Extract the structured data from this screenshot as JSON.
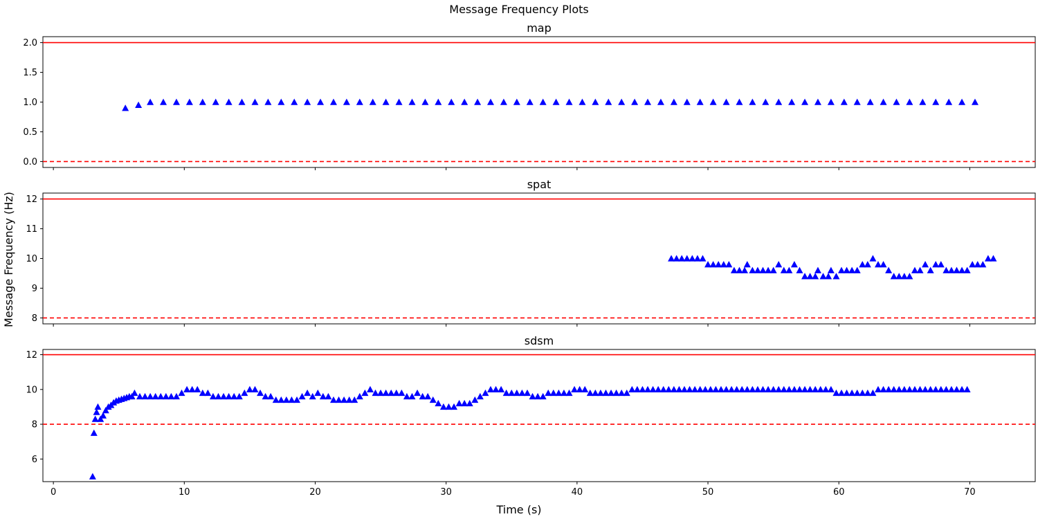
{
  "figure": {
    "suptitle": "Message Frequency Plots",
    "xlabel": "Time (s)",
    "ylabel": "Message Frequency (Hz)",
    "xlim": [
      -0.8,
      75
    ],
    "xticks": [
      0,
      10,
      20,
      30,
      40,
      50,
      60,
      70
    ],
    "colors": {
      "marker": "#0000ff",
      "threshold": "#ff0000",
      "axis": "#000000"
    }
  },
  "chart_data": [
    {
      "type": "scatter",
      "title": "map",
      "marker": "triangle",
      "ylim": [
        -0.1,
        2.1
      ],
      "yticks": [
        0.0,
        0.5,
        1.0,
        1.5,
        2.0
      ],
      "ytick_labels": [
        "0.0",
        "0.5",
        "1.0",
        "1.5",
        "2.0"
      ],
      "max_line": 2.0,
      "min_line": 0.0,
      "points": [
        [
          5.5,
          0.9
        ],
        [
          6.5,
          0.95
        ],
        [
          7.4,
          1.0
        ],
        [
          8.4,
          1.0
        ],
        [
          9.4,
          1.0
        ],
        [
          10.4,
          1.0
        ],
        [
          11.4,
          1.0
        ],
        [
          12.4,
          1.0
        ],
        [
          13.4,
          1.0
        ],
        [
          14.4,
          1.0
        ],
        [
          15.4,
          1.0
        ],
        [
          16.4,
          1.0
        ],
        [
          17.4,
          1.0
        ],
        [
          18.4,
          1.0
        ],
        [
          19.4,
          1.0
        ],
        [
          20.4,
          1.0
        ],
        [
          21.4,
          1.0
        ],
        [
          22.4,
          1.0
        ],
        [
          23.4,
          1.0
        ],
        [
          24.4,
          1.0
        ],
        [
          25.4,
          1.0
        ],
        [
          26.4,
          1.0
        ],
        [
          27.4,
          1.0
        ],
        [
          28.4,
          1.0
        ],
        [
          29.4,
          1.0
        ],
        [
          30.4,
          1.0
        ],
        [
          31.4,
          1.0
        ],
        [
          32.4,
          1.0
        ],
        [
          33.4,
          1.0
        ],
        [
          34.4,
          1.0
        ],
        [
          35.4,
          1.0
        ],
        [
          36.4,
          1.0
        ],
        [
          37.4,
          1.0
        ],
        [
          38.4,
          1.0
        ],
        [
          39.4,
          1.0
        ],
        [
          40.4,
          1.0
        ],
        [
          41.4,
          1.0
        ],
        [
          42.4,
          1.0
        ],
        [
          43.4,
          1.0
        ],
        [
          44.4,
          1.0
        ],
        [
          45.4,
          1.0
        ],
        [
          46.4,
          1.0
        ],
        [
          47.4,
          1.0
        ],
        [
          48.4,
          1.0
        ],
        [
          49.4,
          1.0
        ],
        [
          50.4,
          1.0
        ],
        [
          51.4,
          1.0
        ],
        [
          52.4,
          1.0
        ],
        [
          53.4,
          1.0
        ],
        [
          54.4,
          1.0
        ],
        [
          55.4,
          1.0
        ],
        [
          56.4,
          1.0
        ],
        [
          57.4,
          1.0
        ],
        [
          58.4,
          1.0
        ],
        [
          59.4,
          1.0
        ],
        [
          60.4,
          1.0
        ],
        [
          61.4,
          1.0
        ],
        [
          62.4,
          1.0
        ],
        [
          63.4,
          1.0
        ],
        [
          64.4,
          1.0
        ],
        [
          65.4,
          1.0
        ],
        [
          66.4,
          1.0
        ],
        [
          67.4,
          1.0
        ],
        [
          68.4,
          1.0
        ],
        [
          69.4,
          1.0
        ],
        [
          70.4,
          1.0
        ]
      ]
    },
    {
      "type": "scatter",
      "title": "spat",
      "marker": "triangle",
      "ylim": [
        7.8,
        12.2
      ],
      "yticks": [
        8,
        9,
        10,
        11,
        12
      ],
      "ytick_labels": [
        "8",
        "9",
        "10",
        "11",
        "12"
      ],
      "max_line": 12,
      "min_line": 8,
      "points": [
        [
          47.2,
          10.0
        ],
        [
          47.6,
          10.0
        ],
        [
          48.0,
          10.0
        ],
        [
          48.4,
          10.0
        ],
        [
          48.8,
          10.0
        ],
        [
          49.2,
          10.0
        ],
        [
          49.6,
          10.0
        ],
        [
          50.0,
          9.8
        ],
        [
          50.4,
          9.8
        ],
        [
          50.8,
          9.8
        ],
        [
          51.2,
          9.8
        ],
        [
          51.6,
          9.8
        ],
        [
          52.0,
          9.6
        ],
        [
          52.4,
          9.6
        ],
        [
          52.8,
          9.6
        ],
        [
          53.0,
          9.8
        ],
        [
          53.4,
          9.6
        ],
        [
          53.8,
          9.6
        ],
        [
          54.2,
          9.6
        ],
        [
          54.6,
          9.6
        ],
        [
          55.0,
          9.6
        ],
        [
          55.4,
          9.8
        ],
        [
          55.8,
          9.6
        ],
        [
          56.2,
          9.6
        ],
        [
          56.6,
          9.8
        ],
        [
          57.0,
          9.6
        ],
        [
          57.4,
          9.4
        ],
        [
          57.8,
          9.4
        ],
        [
          58.2,
          9.4
        ],
        [
          58.4,
          9.6
        ],
        [
          58.8,
          9.4
        ],
        [
          59.2,
          9.4
        ],
        [
          59.4,
          9.6
        ],
        [
          59.8,
          9.4
        ],
        [
          60.2,
          9.6
        ],
        [
          60.6,
          9.6
        ],
        [
          61.0,
          9.6
        ],
        [
          61.4,
          9.6
        ],
        [
          61.8,
          9.8
        ],
        [
          62.2,
          9.8
        ],
        [
          62.6,
          10.0
        ],
        [
          63.0,
          9.8
        ],
        [
          63.4,
          9.8
        ],
        [
          63.8,
          9.6
        ],
        [
          64.2,
          9.4
        ],
        [
          64.6,
          9.4
        ],
        [
          65.0,
          9.4
        ],
        [
          65.4,
          9.4
        ],
        [
          65.8,
          9.6
        ],
        [
          66.2,
          9.6
        ],
        [
          66.6,
          9.8
        ],
        [
          67.0,
          9.6
        ],
        [
          67.4,
          9.8
        ],
        [
          67.8,
          9.8
        ],
        [
          68.2,
          9.6
        ],
        [
          68.6,
          9.6
        ],
        [
          69.0,
          9.6
        ],
        [
          69.4,
          9.6
        ],
        [
          69.8,
          9.6
        ],
        [
          70.2,
          9.8
        ],
        [
          70.6,
          9.8
        ],
        [
          71.0,
          9.8
        ],
        [
          71.4,
          10.0
        ],
        [
          71.8,
          10.0
        ]
      ]
    },
    {
      "type": "scatter",
      "title": "sdsm",
      "marker": "triangle",
      "ylim": [
        4.7,
        12.3
      ],
      "yticks": [
        6,
        8,
        10,
        12
      ],
      "ytick_labels": [
        "6",
        "8",
        "10",
        "12"
      ],
      "max_line": 12,
      "min_line": 8,
      "points": [
        [
          3.0,
          5.0
        ],
        [
          3.1,
          7.5
        ],
        [
          3.2,
          8.3
        ],
        [
          3.3,
          8.7
        ],
        [
          3.4,
          9.0
        ],
        [
          3.6,
          8.3
        ],
        [
          3.8,
          8.5
        ],
        [
          4.0,
          8.8
        ],
        [
          4.2,
          9.0
        ],
        [
          4.4,
          9.1
        ],
        [
          4.6,
          9.25
        ],
        [
          4.8,
          9.35
        ],
        [
          5.0,
          9.4
        ],
        [
          5.2,
          9.45
        ],
        [
          5.4,
          9.5
        ],
        [
          5.6,
          9.55
        ],
        [
          5.8,
          9.6
        ],
        [
          6.0,
          9.6
        ],
        [
          6.2,
          9.8
        ],
        [
          6.6,
          9.6
        ],
        [
          7.0,
          9.6
        ],
        [
          7.4,
          9.6
        ],
        [
          7.8,
          9.6
        ],
        [
          8.2,
          9.6
        ],
        [
          8.6,
          9.6
        ],
        [
          9.0,
          9.6
        ],
        [
          9.4,
          9.6
        ],
        [
          9.8,
          9.8
        ],
        [
          10.2,
          10.0
        ],
        [
          10.6,
          10.0
        ],
        [
          11.0,
          10.0
        ],
        [
          11.4,
          9.8
        ],
        [
          11.8,
          9.8
        ],
        [
          12.2,
          9.6
        ],
        [
          12.6,
          9.6
        ],
        [
          13.0,
          9.6
        ],
        [
          13.4,
          9.6
        ],
        [
          13.8,
          9.6
        ],
        [
          14.2,
          9.6
        ],
        [
          14.6,
          9.8
        ],
        [
          15.0,
          10.0
        ],
        [
          15.4,
          10.0
        ],
        [
          15.8,
          9.8
        ],
        [
          16.2,
          9.6
        ],
        [
          16.6,
          9.6
        ],
        [
          17.0,
          9.4
        ],
        [
          17.4,
          9.4
        ],
        [
          17.8,
          9.4
        ],
        [
          18.2,
          9.4
        ],
        [
          18.6,
          9.4
        ],
        [
          19.0,
          9.6
        ],
        [
          19.4,
          9.8
        ],
        [
          19.8,
          9.6
        ],
        [
          20.2,
          9.8
        ],
        [
          20.6,
          9.6
        ],
        [
          21.0,
          9.6
        ],
        [
          21.4,
          9.4
        ],
        [
          21.8,
          9.4
        ],
        [
          22.2,
          9.4
        ],
        [
          22.6,
          9.4
        ],
        [
          23.0,
          9.4
        ],
        [
          23.4,
          9.6
        ],
        [
          23.8,
          9.8
        ],
        [
          24.2,
          10.0
        ],
        [
          24.6,
          9.8
        ],
        [
          25.0,
          9.8
        ],
        [
          25.4,
          9.8
        ],
        [
          25.8,
          9.8
        ],
        [
          26.2,
          9.8
        ],
        [
          26.6,
          9.8
        ],
        [
          27.0,
          9.6
        ],
        [
          27.4,
          9.6
        ],
        [
          27.8,
          9.8
        ],
        [
          28.2,
          9.6
        ],
        [
          28.6,
          9.6
        ],
        [
          29.0,
          9.4
        ],
        [
          29.4,
          9.2
        ],
        [
          29.8,
          9.0
        ],
        [
          30.2,
          9.0
        ],
        [
          30.6,
          9.0
        ],
        [
          31.0,
          9.2
        ],
        [
          31.4,
          9.2
        ],
        [
          31.8,
          9.2
        ],
        [
          32.2,
          9.4
        ],
        [
          32.6,
          9.6
        ],
        [
          33.0,
          9.8
        ],
        [
          33.4,
          10.0
        ],
        [
          33.8,
          10.0
        ],
        [
          34.2,
          10.0
        ],
        [
          34.6,
          9.8
        ],
        [
          35.0,
          9.8
        ],
        [
          35.4,
          9.8
        ],
        [
          35.8,
          9.8
        ],
        [
          36.2,
          9.8
        ],
        [
          36.6,
          9.6
        ],
        [
          37.0,
          9.6
        ],
        [
          37.4,
          9.6
        ],
        [
          37.8,
          9.8
        ],
        [
          38.2,
          9.8
        ],
        [
          38.6,
          9.8
        ],
        [
          39.0,
          9.8
        ],
        [
          39.4,
          9.8
        ],
        [
          39.8,
          10.0
        ],
        [
          40.2,
          10.0
        ],
        [
          40.6,
          10.0
        ],
        [
          41.0,
          9.8
        ],
        [
          41.4,
          9.8
        ],
        [
          41.8,
          9.8
        ],
        [
          42.2,
          9.8
        ],
        [
          42.6,
          9.8
        ],
        [
          43.0,
          9.8
        ],
        [
          43.4,
          9.8
        ],
        [
          43.8,
          9.8
        ],
        [
          44.2,
          10.0
        ],
        [
          44.6,
          10.0
        ],
        [
          45.0,
          10.0
        ],
        [
          45.4,
          10.0
        ],
        [
          45.8,
          10.0
        ],
        [
          46.2,
          10.0
        ],
        [
          46.6,
          10.0
        ],
        [
          47.0,
          10.0
        ],
        [
          47.4,
          10.0
        ],
        [
          47.8,
          10.0
        ],
        [
          48.2,
          10.0
        ],
        [
          48.6,
          10.0
        ],
        [
          49.0,
          10.0
        ],
        [
          49.4,
          10.0
        ],
        [
          49.8,
          10.0
        ],
        [
          50.2,
          10.0
        ],
        [
          50.6,
          10.0
        ],
        [
          51.0,
          10.0
        ],
        [
          51.4,
          10.0
        ],
        [
          51.8,
          10.0
        ],
        [
          52.2,
          10.0
        ],
        [
          52.6,
          10.0
        ],
        [
          53.0,
          10.0
        ],
        [
          53.4,
          10.0
        ],
        [
          53.8,
          10.0
        ],
        [
          54.2,
          10.0
        ],
        [
          54.6,
          10.0
        ],
        [
          55.0,
          10.0
        ],
        [
          55.4,
          10.0
        ],
        [
          55.8,
          10.0
        ],
        [
          56.2,
          10.0
        ],
        [
          56.6,
          10.0
        ],
        [
          57.0,
          10.0
        ],
        [
          57.4,
          10.0
        ],
        [
          57.8,
          10.0
        ],
        [
          58.2,
          10.0
        ],
        [
          58.6,
          10.0
        ],
        [
          59.0,
          10.0
        ],
        [
          59.4,
          10.0
        ],
        [
          59.8,
          9.8
        ],
        [
          60.2,
          9.8
        ],
        [
          60.6,
          9.8
        ],
        [
          61.0,
          9.8
        ],
        [
          61.4,
          9.8
        ],
        [
          61.8,
          9.8
        ],
        [
          62.2,
          9.8
        ],
        [
          62.6,
          9.8
        ],
        [
          63.0,
          10.0
        ],
        [
          63.4,
          10.0
        ],
        [
          63.8,
          10.0
        ],
        [
          64.2,
          10.0
        ],
        [
          64.6,
          10.0
        ],
        [
          65.0,
          10.0
        ],
        [
          65.4,
          10.0
        ],
        [
          65.8,
          10.0
        ],
        [
          66.2,
          10.0
        ],
        [
          66.6,
          10.0
        ],
        [
          67.0,
          10.0
        ],
        [
          67.4,
          10.0
        ],
        [
          67.8,
          10.0
        ],
        [
          68.2,
          10.0
        ],
        [
          68.6,
          10.0
        ],
        [
          69.0,
          10.0
        ],
        [
          69.4,
          10.0
        ],
        [
          69.8,
          10.0
        ]
      ]
    }
  ]
}
